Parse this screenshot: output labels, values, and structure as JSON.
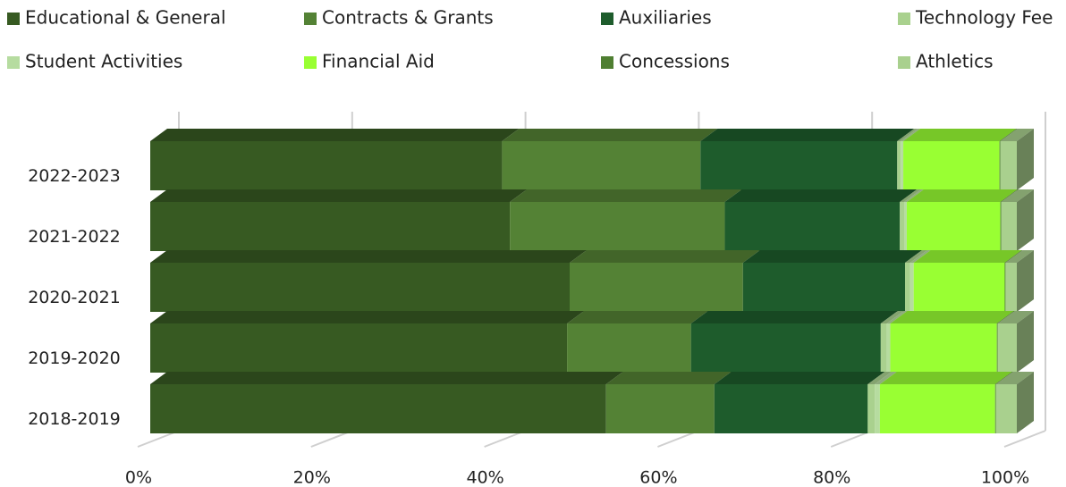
{
  "chart_data": {
    "type": "stacked-bar-3d",
    "categories": [
      "2022-2023",
      "2021-2022",
      "2020-2021",
      "2019-2020",
      "2018-2019"
    ],
    "series": [
      {
        "name": "Educational & General",
        "color": "#375a22",
        "values": [
          40.6,
          41.5,
          48.4,
          48.1,
          52.6
        ]
      },
      {
        "name": "Contracts & Grants",
        "color": "#548235",
        "values": [
          22.9,
          24.8,
          20.0,
          14.3,
          12.5
        ]
      },
      {
        "name": "Auxiliaries",
        "color": "#1e5c2c",
        "values": [
          22.7,
          20.2,
          18.7,
          21.9,
          17.7
        ]
      },
      {
        "name": "Technology Fee",
        "color": "#a9d18e",
        "values": [
          0.4,
          0.5,
          0.6,
          0.7,
          0.8
        ]
      },
      {
        "name": "Student Activities",
        "color": "#b6dca0",
        "values": [
          0.3,
          0.3,
          0.4,
          0.4,
          0.6
        ]
      },
      {
        "name": "Financial Aid",
        "color": "#99ff33",
        "values": [
          11.1,
          10.8,
          10.5,
          12.3,
          13.3
        ]
      },
      {
        "name": "Concessions",
        "color": "#4f7f32",
        "values": [
          0.1,
          0.1,
          0.1,
          0.1,
          0.1
        ]
      },
      {
        "name": "Athletics",
        "color": "#a9d08e",
        "values": [
          1.9,
          1.8,
          1.3,
          2.2,
          2.4
        ]
      }
    ],
    "xlim": [
      0,
      100
    ],
    "xticks": [
      {
        "value": 0,
        "label": "0%"
      },
      {
        "value": 20,
        "label": "20%"
      },
      {
        "value": 40,
        "label": "40%"
      },
      {
        "value": 60,
        "label": "60%"
      },
      {
        "value": 80,
        "label": "80%"
      },
      {
        "value": 100,
        "label": "100%"
      }
    ],
    "grid": true,
    "legend": "top"
  }
}
